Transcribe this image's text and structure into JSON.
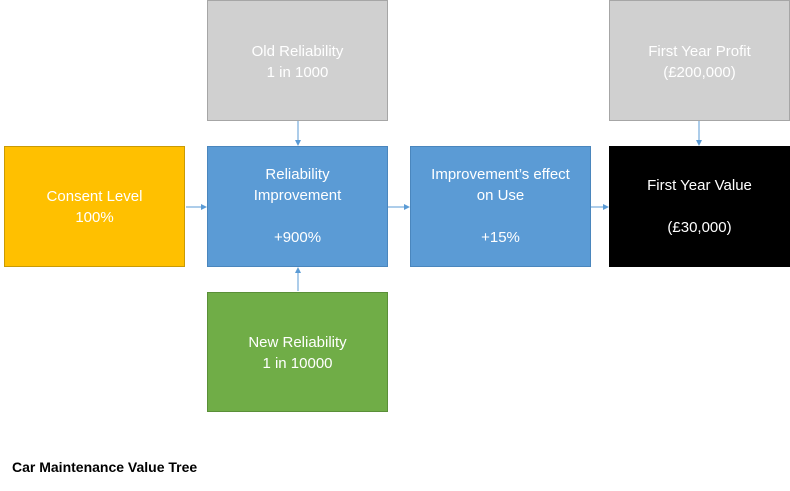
{
  "diagram": {
    "caption": "Car Maintenance Value Tree",
    "nodes": {
      "old_reliability": {
        "title": "Old Reliability",
        "value": "1 in 1000"
      },
      "first_year_profit": {
        "title": "First Year Profit",
        "value": "(£200,000)"
      },
      "consent_level": {
        "title": "Consent Level",
        "value": "100%"
      },
      "reliability_improvement": {
        "title_1": "Reliability",
        "title_2": "Improvement",
        "value": "+900%"
      },
      "improvement_effect": {
        "title_1": "Improvement’s effect",
        "title_2": "on Use",
        "value": "+15%"
      },
      "first_year_value": {
        "title": "First Year Value",
        "value": "(£30,000)"
      },
      "new_reliability": {
        "title": "New Reliability",
        "value": "1 in 10000"
      }
    },
    "colors": {
      "gray_input": "#d0d0d0",
      "intermediate": "#5b9bd5",
      "decision": "#ffc000",
      "new_input": "#70ad47",
      "output": "#000000",
      "connector": "#5b9bd5"
    }
  }
}
